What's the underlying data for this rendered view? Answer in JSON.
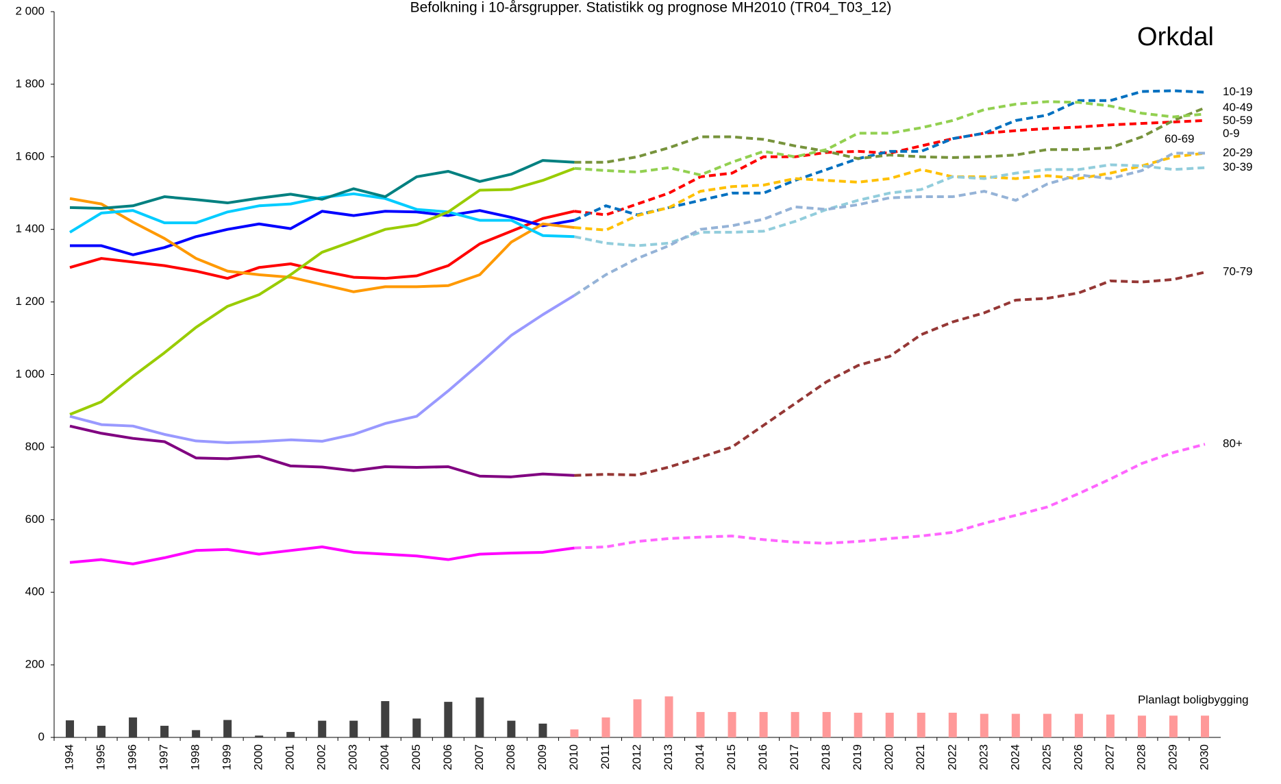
{
  "chart_data": {
    "type": "line",
    "title": "Befolkning i 10-årsgrupper. Statistikk og prognose  MH2010 (TR04_T03_12)",
    "subtitle": "Orkdal",
    "categories": [
      "1994",
      "1995",
      "1996",
      "1997",
      "1998",
      "1999",
      "2000",
      "2001",
      "2002",
      "2003",
      "2004",
      "2005",
      "2006",
      "2007",
      "2008",
      "2009",
      "2010",
      "2011",
      "2012",
      "2013",
      "2014",
      "2015",
      "2016",
      "2017",
      "2018",
      "2019",
      "2020",
      "2021",
      "2022",
      "2023",
      "2024",
      "2025",
      "2026",
      "2027",
      "2028",
      "2029",
      "2030"
    ],
    "ylim": [
      0,
      2000
    ],
    "yticks": [
      0,
      200,
      400,
      600,
      800,
      {
        "value": 1000,
        "label": "1 000"
      },
      {
        "value": 1200,
        "label": "1 200"
      },
      {
        "value": 1400,
        "label": "1 400"
      },
      {
        "value": 1600,
        "label": "1 600"
      },
      {
        "value": 1800,
        "label": "1 800"
      },
      {
        "value": 2000,
        "label": "2 000"
      }
    ],
    "grid": false,
    "series": [
      {
        "name": "0-9",
        "color": "#ff0000",
        "forecast_color": "#ff0000",
        "values": [
          1295,
          1320,
          1310,
          1300,
          1285,
          1265,
          1295,
          1305,
          1285,
          1268,
          1265,
          1272,
          1300,
          1360,
          1395,
          1430,
          1450,
          null,
          null,
          null,
          null,
          null,
          null,
          null,
          null,
          null,
          null,
          null,
          null,
          null,
          null,
          null,
          null,
          null,
          null,
          null,
          null
        ],
        "forecast_values": [
          null,
          null,
          null,
          null,
          null,
          null,
          null,
          null,
          null,
          null,
          null,
          null,
          null,
          null,
          null,
          null,
          null,
          1440,
          1470,
          1500,
          1545,
          1555,
          1600,
          1600,
          1612,
          1615,
          1610,
          1630,
          1650,
          1665,
          1672,
          1678,
          1682,
          1688,
          1692,
          1696,
          1700
        ]
      },
      {
        "name": "10-19",
        "color": "#0000ff",
        "forecast_color": "#0070c0",
        "values": [
          1355,
          1355,
          1330,
          1350,
          1380,
          1400,
          1415,
          1402,
          1450,
          1438,
          1450,
          1448,
          1438,
          1452,
          1433,
          1410,
          1425,
          null,
          null,
          null,
          null,
          null,
          null,
          null,
          null,
          null,
          null,
          null,
          null,
          null,
          null,
          null,
          null,
          null,
          null,
          null,
          null
        ],
        "forecast_values": [
          null,
          null,
          null,
          null,
          null,
          null,
          null,
          null,
          null,
          null,
          null,
          null,
          null,
          null,
          null,
          null,
          null,
          1465,
          1440,
          1460,
          1480,
          1500,
          1500,
          1535,
          1565,
          1595,
          1615,
          1615,
          1650,
          1665,
          1700,
          1715,
          1755,
          1755,
          1780,
          1782,
          1778
        ]
      },
      {
        "name": "20-29",
        "color": "#ff9900",
        "forecast_color": "#ffc000",
        "values": [
          1485,
          1470,
          1420,
          1375,
          1320,
          1285,
          1275,
          1268,
          1248,
          1228,
          1242,
          1242,
          1245,
          1275,
          1365,
          1415,
          1405,
          null,
          null,
          null,
          null,
          null,
          null,
          null,
          null,
          null,
          null,
          null,
          null,
          null,
          null,
          null,
          null,
          null,
          null,
          null,
          null
        ],
        "forecast_values": [
          null,
          null,
          null,
          null,
          null,
          null,
          null,
          null,
          null,
          null,
          null,
          null,
          null,
          null,
          null,
          null,
          null,
          1398,
          1438,
          1460,
          1505,
          1518,
          1522,
          1540,
          1535,
          1530,
          1540,
          1565,
          1545,
          1545,
          1540,
          1548,
          1540,
          1555,
          1575,
          1600,
          1610
        ]
      },
      {
        "name": "30-39",
        "color": "#00ccff",
        "forecast_color": "#92cddc",
        "values": [
          1392,
          1445,
          1452,
          1418,
          1418,
          1448,
          1465,
          1470,
          1488,
          1498,
          1485,
          1455,
          1448,
          1425,
          1425,
          1383,
          1380,
          null,
          null,
          null,
          null,
          null,
          null,
          null,
          null,
          null,
          null,
          null,
          null,
          null,
          null,
          null,
          null,
          null,
          null,
          null,
          null
        ],
        "forecast_values": [
          null,
          null,
          null,
          null,
          null,
          null,
          null,
          null,
          null,
          null,
          null,
          null,
          null,
          null,
          null,
          null,
          null,
          1362,
          1355,
          1362,
          1392,
          1392,
          1395,
          1422,
          1455,
          1480,
          1500,
          1510,
          1545,
          1540,
          1555,
          1565,
          1565,
          1578,
          1575,
          1565,
          1570
        ]
      },
      {
        "name": "40-49",
        "color": "#008080",
        "forecast_color": "#77933c",
        "values": [
          1460,
          1458,
          1465,
          1490,
          1482,
          1473,
          1486,
          1497,
          1483,
          1512,
          1490,
          1545,
          1560,
          1532,
          1552,
          1590,
          1585,
          null,
          null,
          null,
          null,
          null,
          null,
          null,
          null,
          null,
          null,
          null,
          null,
          null,
          null,
          null,
          null,
          null,
          null,
          null,
          null
        ],
        "forecast_values": [
          null,
          null,
          null,
          null,
          null,
          null,
          null,
          null,
          null,
          null,
          null,
          null,
          null,
          null,
          null,
          null,
          null,
          1585,
          1600,
          1625,
          1655,
          1655,
          1648,
          1630,
          1615,
          1595,
          1605,
          1600,
          1598,
          1600,
          1605,
          1620,
          1620,
          1625,
          1655,
          1700,
          1735
        ]
      },
      {
        "name": "50-59",
        "color": "#99cc00",
        "forecast_color": "#92d050",
        "values": [
          890,
          925,
          995,
          1060,
          1130,
          1188,
          1220,
          1275,
          1337,
          1368,
          1400,
          1413,
          1448,
          1508,
          1510,
          1535,
          1568,
          null,
          null,
          null,
          null,
          null,
          null,
          null,
          null,
          null,
          null,
          null,
          null,
          null,
          null,
          null,
          null,
          null,
          null,
          null,
          null
        ],
        "forecast_values": [
          null,
          null,
          null,
          null,
          null,
          null,
          null,
          null,
          null,
          null,
          null,
          null,
          null,
          null,
          null,
          null,
          null,
          1562,
          1558,
          1570,
          1550,
          1585,
          1615,
          1600,
          1620,
          1665,
          1665,
          1680,
          1700,
          1730,
          1745,
          1752,
          1750,
          1740,
          1720,
          1710,
          1718
        ]
      },
      {
        "name": "60-69",
        "color": "#9999ff",
        "forecast_color": "#95b3d7",
        "values": [
          885,
          862,
          858,
          835,
          817,
          812,
          815,
          820,
          816,
          835,
          865,
          885,
          955,
          1030,
          1108,
          1165,
          1218,
          null,
          null,
          null,
          null,
          null,
          null,
          null,
          null,
          null,
          null,
          null,
          null,
          null,
          null,
          null,
          null,
          null,
          null,
          null,
          null
        ],
        "forecast_values": [
          null,
          null,
          null,
          null,
          null,
          null,
          null,
          null,
          null,
          null,
          null,
          null,
          null,
          null,
          null,
          null,
          null,
          1275,
          1320,
          1355,
          1400,
          1410,
          1428,
          1462,
          1455,
          1468,
          1487,
          1490,
          1490,
          1505,
          1480,
          1525,
          1550,
          1540,
          1562,
          1610,
          1610
        ]
      },
      {
        "name": "70-79",
        "color": "#800080",
        "forecast_color": "#953735",
        "values": [
          858,
          838,
          824,
          815,
          770,
          768,
          775,
          748,
          745,
          735,
          746,
          744,
          746,
          720,
          718,
          726,
          722,
          null,
          null,
          null,
          null,
          null,
          null,
          null,
          null,
          null,
          null,
          null,
          null,
          null,
          null,
          null,
          null,
          null,
          null,
          null,
          null
        ],
        "forecast_values": [
          null,
          null,
          null,
          null,
          null,
          null,
          null,
          null,
          null,
          null,
          null,
          null,
          null,
          null,
          null,
          null,
          null,
          725,
          723,
          745,
          772,
          800,
          860,
          920,
          980,
          1025,
          1050,
          1110,
          1145,
          1170,
          1205,
          1210,
          1225,
          1258,
          1255,
          1262,
          1282
        ]
      },
      {
        "name": "80+",
        "color": "#ff00ff",
        "forecast_color": "#ff66ff",
        "values": [
          482,
          490,
          478,
          495,
          515,
          518,
          505,
          515,
          525,
          510,
          505,
          500,
          490,
          505,
          508,
          510,
          522,
          null,
          null,
          null,
          null,
          null,
          null,
          null,
          null,
          null,
          null,
          null,
          null,
          null,
          null,
          null,
          null,
          null,
          null,
          null,
          null
        ],
        "forecast_values": [
          null,
          null,
          null,
          null,
          null,
          null,
          null,
          null,
          null,
          null,
          null,
          null,
          null,
          null,
          null,
          null,
          null,
          525,
          540,
          548,
          552,
          555,
          545,
          538,
          535,
          540,
          548,
          555,
          565,
          590,
          612,
          635,
          672,
          712,
          755,
          785,
          808
        ]
      }
    ],
    "bars": {
      "name": "Planlagt boligbygging",
      "color": "#404040",
      "forecast_color": "#ff9999",
      "values": [
        47,
        32,
        55,
        32,
        20,
        48,
        5,
        15,
        46,
        46,
        100,
        52,
        98,
        110,
        46,
        38,
        null,
        null,
        null,
        null,
        null,
        null,
        null,
        null,
        null,
        null,
        null,
        null,
        null,
        null,
        null,
        null,
        null,
        null,
        null,
        null,
        null
      ],
      "forecast_values": [
        null,
        null,
        null,
        null,
        null,
        null,
        null,
        null,
        null,
        null,
        null,
        null,
        null,
        null,
        null,
        null,
        22,
        55,
        105,
        113,
        70,
        70,
        70,
        70,
        70,
        68,
        68,
        68,
        68,
        65,
        65,
        65,
        65,
        63,
        60,
        60,
        60
      ]
    }
  }
}
